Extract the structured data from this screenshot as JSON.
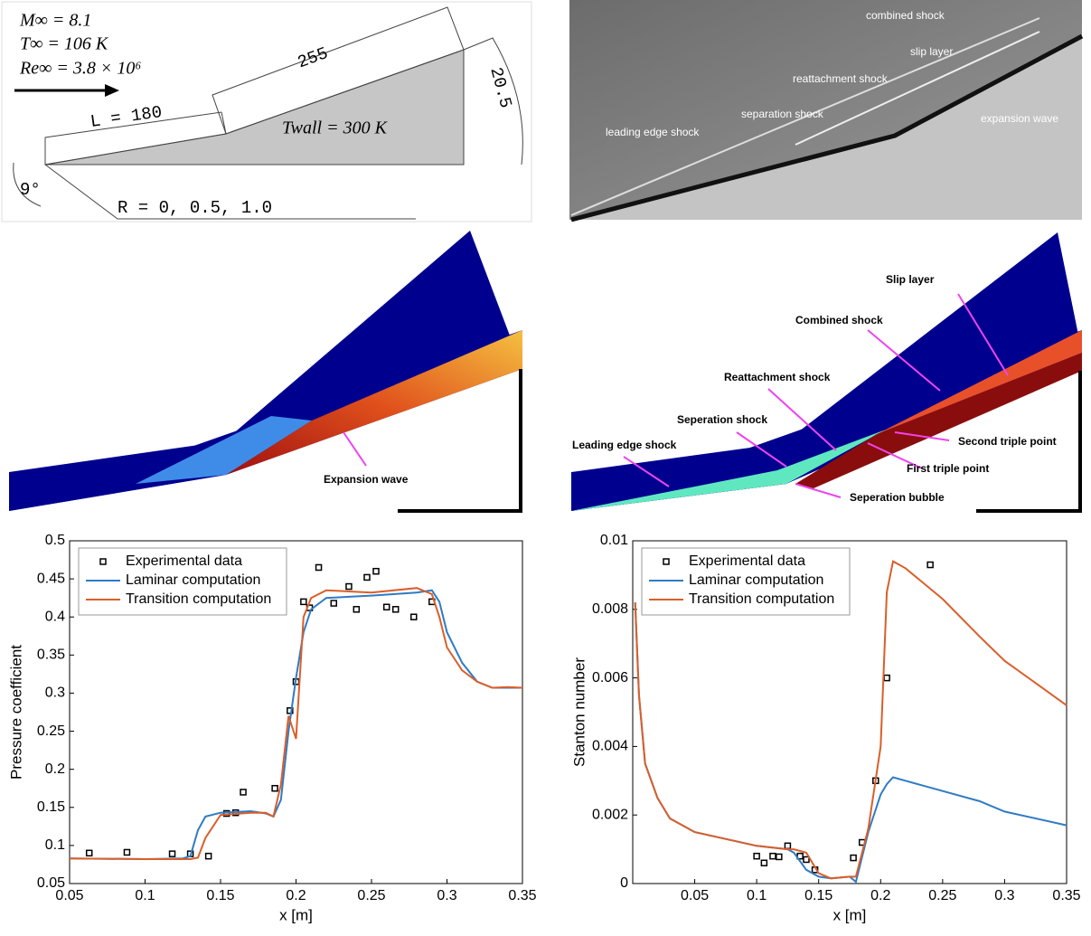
{
  "schematic": {
    "mach": "M∞  = 8.1",
    "temperature": "T∞  = 106 K",
    "reynolds": "Re∞ = 3.8 × 10⁶",
    "length_first": "L = 180",
    "length_second": "255",
    "height": "20.5",
    "angle": "9°",
    "radius": "R = 0, 0.5, 1.0",
    "wall_temperature": "Twall = 300 K"
  },
  "schlieren": {
    "labels": [
      "combined shock",
      "slip layer",
      "reattachment shock",
      "separation shock",
      "leading edge shock",
      "expansion wave"
    ]
  },
  "contour_left": {
    "labels": [
      "Expansion wave"
    ]
  },
  "contour_right": {
    "labels": [
      "Slip layer",
      "Combined shock",
      "Reattachment shock",
      "Seperation shock",
      "Leading edge shock",
      "Second triple point",
      "First triple point",
      "Seperation bubble"
    ]
  },
  "chart_data": [
    {
      "type": "line",
      "xlabel": "x [m]",
      "ylabel": "Pressure coefficient",
      "xlim": [
        0.05,
        0.35
      ],
      "ylim": [
        0.05,
        0.5
      ],
      "xticks": [
        0.05,
        0.1,
        0.15,
        0.2,
        0.25,
        0.3,
        0.35
      ],
      "yticks": [
        0.05,
        0.1,
        0.15,
        0.2,
        0.25,
        0.3,
        0.35,
        0.4,
        0.45,
        0.5
      ],
      "legend": "upper left",
      "series": [
        {
          "name": "Experimental data",
          "kind": "scatter",
          "color": "#000000",
          "x": [
            0.063,
            0.088,
            0.118,
            0.13,
            0.142,
            0.154,
            0.16,
            0.165,
            0.186,
            0.196,
            0.2,
            0.205,
            0.209,
            0.215,
            0.225,
            0.235,
            0.24,
            0.247,
            0.253,
            0.26,
            0.266,
            0.278,
            0.29
          ],
          "values": [
            0.09,
            0.091,
            0.089,
            0.089,
            0.086,
            0.142,
            0.143,
            0.17,
            0.175,
            0.277,
            0.315,
            0.42,
            0.412,
            0.465,
            0.418,
            0.44,
            0.41,
            0.452,
            0.46,
            0.413,
            0.41,
            0.4,
            0.42
          ]
        },
        {
          "name": "Laminar computation",
          "kind": "line",
          "color": "#2f7bc4",
          "x": [
            0.05,
            0.1,
            0.125,
            0.13,
            0.135,
            0.14,
            0.15,
            0.17,
            0.18,
            0.185,
            0.19,
            0.195,
            0.2,
            0.205,
            0.21,
            0.22,
            0.25,
            0.28,
            0.29,
            0.295,
            0.3,
            0.31,
            0.32,
            0.33,
            0.34,
            0.35
          ],
          "values": [
            0.083,
            0.082,
            0.083,
            0.086,
            0.12,
            0.138,
            0.143,
            0.145,
            0.142,
            0.138,
            0.16,
            0.25,
            0.32,
            0.38,
            0.41,
            0.425,
            0.428,
            0.432,
            0.435,
            0.42,
            0.38,
            0.34,
            0.315,
            0.307,
            0.307,
            0.307
          ]
        },
        {
          "name": "Transition computation",
          "kind": "line",
          "color": "#d95f2b",
          "x": [
            0.05,
            0.1,
            0.125,
            0.13,
            0.135,
            0.14,
            0.15,
            0.17,
            0.18,
            0.185,
            0.19,
            0.195,
            0.2,
            0.205,
            0.21,
            0.22,
            0.25,
            0.28,
            0.29,
            0.295,
            0.3,
            0.31,
            0.32,
            0.33,
            0.34,
            0.35
          ],
          "values": [
            0.083,
            0.082,
            0.082,
            0.082,
            0.084,
            0.11,
            0.14,
            0.143,
            0.143,
            0.138,
            0.18,
            0.27,
            0.24,
            0.4,
            0.425,
            0.435,
            0.432,
            0.438,
            0.43,
            0.4,
            0.36,
            0.33,
            0.315,
            0.307,
            0.308,
            0.307
          ]
        }
      ]
    },
    {
      "type": "line",
      "xlabel": "x [m]",
      "ylabel": "Stanton number",
      "xlim": [
        0,
        0.35
      ],
      "ylim": [
        0,
        0.01
      ],
      "xticks": [
        0.05,
        0.1,
        0.15,
        0.2,
        0.25,
        0.3,
        0.35
      ],
      "yticks": [
        0,
        0.002,
        0.004,
        0.006,
        0.008,
        0.01
      ],
      "legend": "upper left",
      "series": [
        {
          "name": "Experimental data",
          "kind": "scatter",
          "color": "#000000",
          "x": [
            0.1,
            0.106,
            0.113,
            0.118,
            0.125,
            0.135,
            0.14,
            0.147,
            0.178,
            0.185,
            0.196,
            0.205,
            0.24
          ],
          "values": [
            0.0008,
            0.0006,
            0.0008,
            0.00078,
            0.0011,
            0.0008,
            0.0007,
            0.0004,
            0.00075,
            0.0012,
            0.003,
            0.006,
            0.0093
          ]
        },
        {
          "name": "Laminar computation",
          "kind": "line",
          "color": "#2f7bc4",
          "x": [
            0.002,
            0.005,
            0.01,
            0.02,
            0.03,
            0.05,
            0.1,
            0.125,
            0.13,
            0.14,
            0.15,
            0.16,
            0.175,
            0.18,
            0.19,
            0.2,
            0.205,
            0.21,
            0.22,
            0.25,
            0.28,
            0.3,
            0.35
          ],
          "values": [
            0.0082,
            0.0055,
            0.0035,
            0.0025,
            0.0019,
            0.0015,
            0.0011,
            0.001,
            0.0009,
            0.0004,
            0.0002,
            0.00015,
            0.0002,
            5e-05,
            0.0015,
            0.0026,
            0.0029,
            0.0031,
            0.003,
            0.0027,
            0.0024,
            0.0021,
            0.0017
          ]
        },
        {
          "name": "Transition computation",
          "kind": "line",
          "color": "#d95f2b",
          "x": [
            0.002,
            0.005,
            0.01,
            0.02,
            0.03,
            0.05,
            0.1,
            0.125,
            0.13,
            0.14,
            0.15,
            0.16,
            0.175,
            0.18,
            0.19,
            0.2,
            0.205,
            0.21,
            0.22,
            0.25,
            0.28,
            0.3,
            0.35
          ],
          "values": [
            0.0082,
            0.0055,
            0.0035,
            0.0025,
            0.0019,
            0.0015,
            0.0011,
            0.001,
            0.001,
            0.0009,
            0.0003,
            0.00015,
            0.0002,
            0.0002,
            0.0016,
            0.004,
            0.0085,
            0.0094,
            0.0092,
            0.0083,
            0.0072,
            0.0065,
            0.0052
          ]
        }
      ]
    }
  ]
}
